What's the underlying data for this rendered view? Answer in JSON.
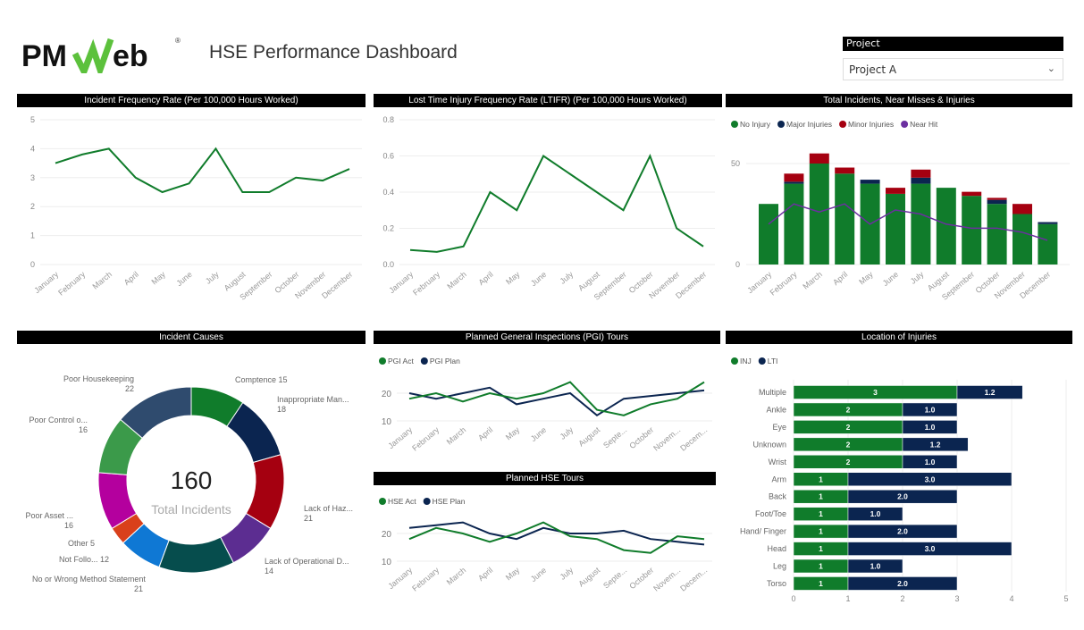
{
  "header": {
    "logo_text": "PMWeb",
    "title": "HSE Performance Dashboard"
  },
  "slicer": {
    "label": "Project",
    "value": "Project A",
    "icon": "chevron-down-icon"
  },
  "months": [
    "January",
    "February",
    "March",
    "April",
    "May",
    "June",
    "July",
    "August",
    "September",
    "October",
    "November",
    "December"
  ],
  "months_short": [
    "January",
    "February",
    "March",
    "April",
    "May",
    "June",
    "July",
    "August",
    "Septe...",
    "October",
    "Novem...",
    "Decem..."
  ],
  "colors": {
    "green": "#107c2b",
    "navy": "#0b2550",
    "red": "#a50010",
    "purple": "#6b2fa0"
  },
  "chart_data": [
    {
      "id": "ifr",
      "type": "line",
      "title": "Incident Frequency Rate (Per 100,000 Hours Worked)",
      "ylim": [
        0,
        5
      ],
      "yticks": [
        "0",
        "1",
        "2",
        "3",
        "4",
        "5"
      ],
      "values": [
        3.5,
        3.8,
        4,
        3,
        2.5,
        2.8,
        4,
        2.5,
        2.5,
        3,
        2.9,
        3.3
      ]
    },
    {
      "id": "ltifr",
      "type": "line",
      "title": "Lost Time Injury Frequency Rate (LTIFR) (Per 100,000 Hours Worked)",
      "ylim": [
        0,
        0.8
      ],
      "yticks": [
        "0.0",
        "0.2",
        "0.4",
        "0.6",
        "0.8"
      ],
      "values": [
        0.08,
        0.07,
        0.1,
        0.4,
        0.3,
        0.6,
        0.5,
        0.4,
        0.3,
        0.6,
        0.2,
        0.1
      ]
    },
    {
      "id": "incidents",
      "type": "bar",
      "stacked": true,
      "title": "Total Incidents, Near Misses & Injuries",
      "yticks": [
        "0",
        "50"
      ],
      "ylim": [
        0,
        60
      ],
      "series": [
        {
          "name": "No Injury",
          "values": [
            30,
            40,
            50,
            45,
            40,
            35,
            40,
            38,
            34,
            30,
            25,
            20
          ]
        },
        {
          "name": "Major Injuries",
          "values": [
            0,
            1,
            0,
            0,
            2,
            0,
            3,
            0,
            0,
            2,
            0,
            1
          ]
        },
        {
          "name": "Minor Injuries",
          "values": [
            0,
            4,
            5,
            3,
            0,
            3,
            4,
            0,
            2,
            1,
            5,
            0
          ]
        }
      ],
      "line": {
        "name": "Near Hit",
        "values": [
          20,
          30,
          26,
          30,
          20,
          27,
          25,
          20,
          18,
          18,
          16,
          12
        ]
      }
    },
    {
      "id": "causes",
      "type": "pie",
      "title": "Incident Causes",
      "center_value": "160",
      "center_label": "Total Incidents",
      "slices": [
        {
          "label": "Comptence",
          "value": 15,
          "color": "#107c2b"
        },
        {
          "label": "Inappropriate Man...",
          "value": 18,
          "color": "#0b2550"
        },
        {
          "label": "Lack of Haz...",
          "value": 21,
          "color": "#a50010"
        },
        {
          "label": "Lack of Operational D...",
          "value": 14,
          "color": "#5c2d91"
        },
        {
          "label": "No or Wrong Method Statement",
          "value": 21,
          "color": "#064d4d"
        },
        {
          "label": "Not Follo...",
          "value": 12,
          "color": "#0f78d4"
        },
        {
          "label": "Other",
          "value": 5,
          "color": "#d9401b"
        },
        {
          "label": "Poor Asset ...",
          "value": 16,
          "color": "#b4009e"
        },
        {
          "label": "Poor Control o...",
          "value": 16,
          "color": "#3b9a4a"
        },
        {
          "label": "Poor Housekeeping",
          "value": 22,
          "color": "#2f4b6e"
        }
      ]
    },
    {
      "id": "pgi",
      "type": "line",
      "title": "Planned General Inspections (PGI) Tours",
      "yticks": [
        "10",
        "20"
      ],
      "series": [
        {
          "name": "PGI Act",
          "values": [
            18,
            20,
            17,
            20,
            18,
            20,
            24,
            14,
            12,
            16,
            18,
            24
          ]
        },
        {
          "name": "PGI Plan",
          "values": [
            20,
            18,
            20,
            22,
            16,
            18,
            20,
            12,
            18,
            19,
            20,
            21
          ]
        }
      ]
    },
    {
      "id": "hse",
      "type": "line",
      "title": "Planned HSE Tours",
      "yticks": [
        "10",
        "20"
      ],
      "series": [
        {
          "name": "HSE Act",
          "values": [
            18,
            22,
            20,
            17,
            20,
            24,
            19,
            18,
            14,
            13,
            19,
            18
          ]
        },
        {
          "name": "HSE Plan",
          "values": [
            22,
            23,
            24,
            20,
            18,
            22,
            20,
            20,
            21,
            18,
            17,
            16
          ]
        }
      ]
    },
    {
      "id": "location",
      "type": "bar",
      "orientation": "horizontal",
      "stacked": true,
      "title": "Location of Injuries",
      "xlim": [
        0,
        5
      ],
      "xticks": [
        "0",
        "1",
        "2",
        "3",
        "4",
        "5"
      ],
      "categories": [
        "Multiple",
        "Ankle",
        "Eye",
        "Unknown",
        "Wrist",
        "Arm",
        "Back",
        "Foot/Toe",
        "Hand/ Finger",
        "Head",
        "Leg",
        "Torso"
      ],
      "series": [
        {
          "name": "INJ",
          "values": [
            3,
            2,
            2,
            2,
            2,
            1,
            1,
            1,
            1,
            1,
            1,
            1
          ],
          "labels": [
            "3",
            "2",
            "2",
            "2",
            "2",
            "1",
            "1",
            "1",
            "1",
            "1",
            "1",
            "1"
          ]
        },
        {
          "name": "LTI",
          "values": [
            1.2,
            1.0,
            1.0,
            1.2,
            1.0,
            3.0,
            2.0,
            1.0,
            2.0,
            3.0,
            1.0,
            2.0
          ],
          "labels": [
            "1.2",
            "1.0",
            "1.0",
            "1.2",
            "1.0",
            "3.0",
            "2.0",
            "1.0",
            "2.0",
            "3.0",
            "1.0",
            "2.0"
          ]
        }
      ]
    }
  ]
}
